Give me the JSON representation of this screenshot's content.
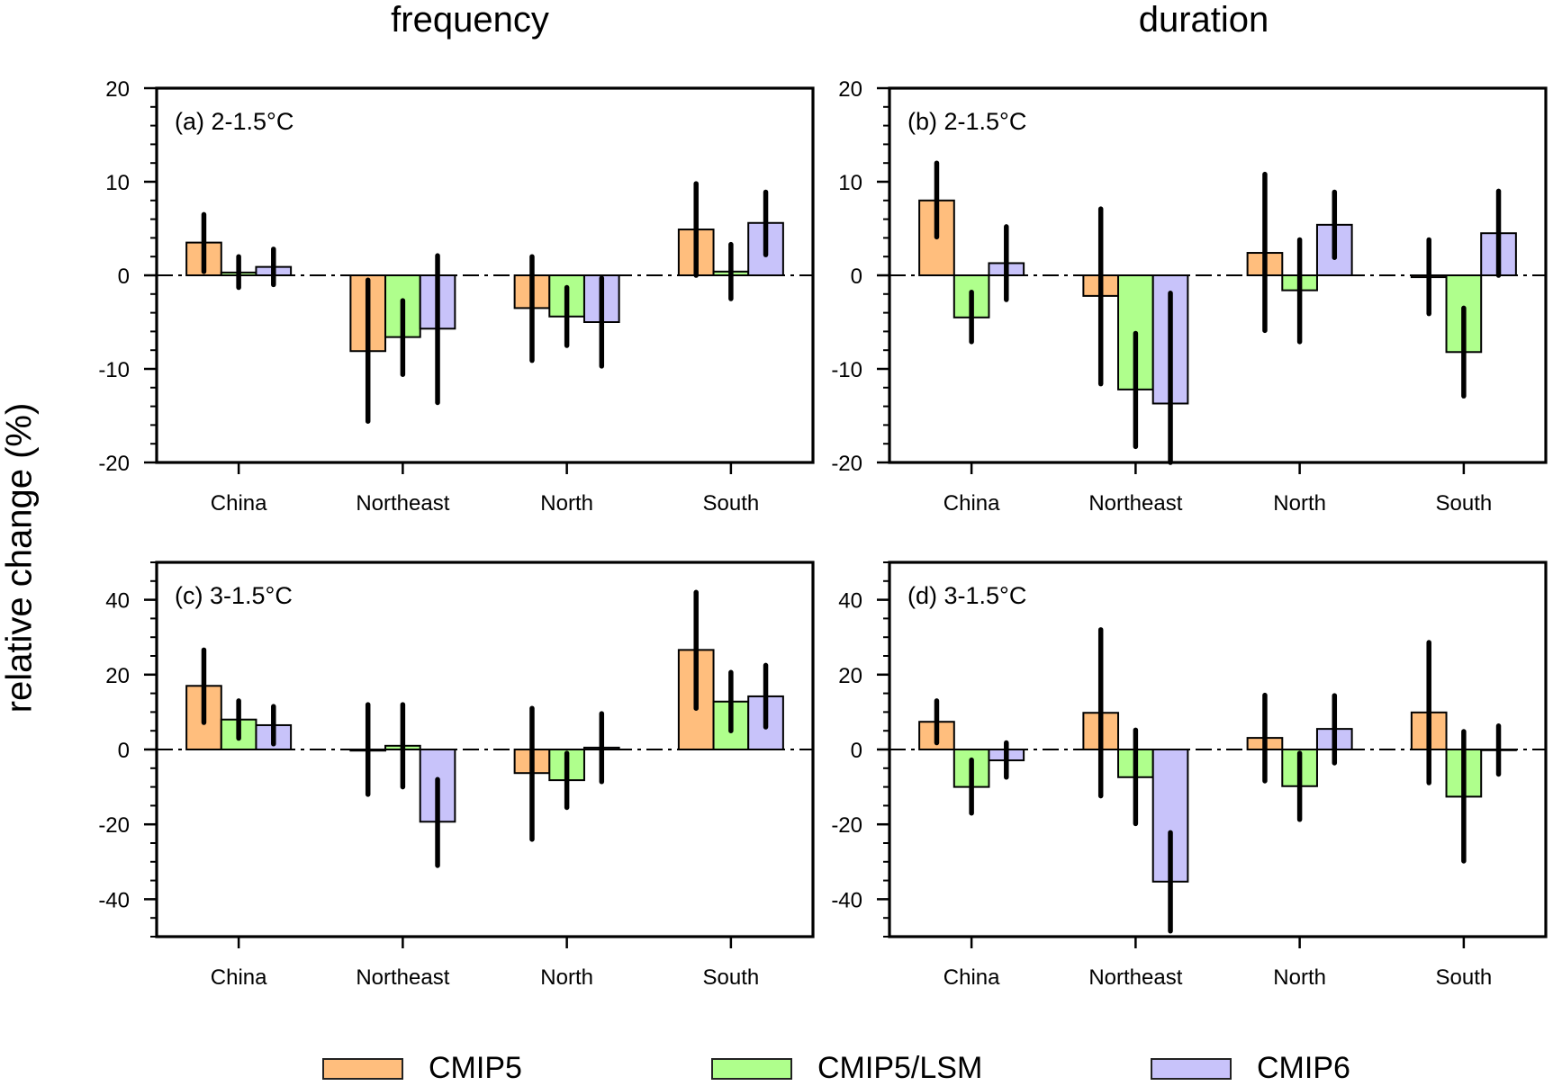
{
  "figure": {
    "column_titles": [
      "frequency",
      "duration"
    ],
    "ylabel": "relative change (%)",
    "legend": [
      {
        "name": "CMIP5",
        "color": "#FFBE7D"
      },
      {
        "name": "CMIP5/LSM",
        "color": "#AFFF8C"
      },
      {
        "name": "CMIP6",
        "color": "#C8C3FA"
      }
    ]
  },
  "chart_data": [
    {
      "type": "bar",
      "panel": "a",
      "column": "frequency",
      "label": "(a) 2-1.5°C",
      "categories": [
        "China",
        "Northeast",
        "North",
        "South"
      ],
      "ylim": [
        -20,
        20
      ],
      "yticks": [
        -20,
        -10,
        0,
        10,
        20
      ],
      "yminor_step": 2,
      "series": [
        {
          "name": "CMIP5",
          "values": [
            3.5,
            -8.1,
            -3.5,
            4.9
          ],
          "err_low": [
            0.4,
            -15.6,
            -9.1,
            0.0
          ],
          "err_high": [
            6.5,
            -0.5,
            2.0,
            9.8
          ]
        },
        {
          "name": "CMIP5/LSM",
          "values": [
            0.3,
            -6.6,
            -4.4,
            0.4
          ],
          "err_low": [
            -1.3,
            -10.6,
            -7.5,
            -2.5
          ],
          "err_high": [
            2.0,
            -2.7,
            -1.3,
            3.3
          ]
        },
        {
          "name": "CMIP6",
          "values": [
            0.9,
            -5.7,
            -5.0,
            5.6
          ],
          "err_low": [
            -1.0,
            -13.6,
            -9.7,
            2.2
          ],
          "err_high": [
            2.8,
            2.1,
            -0.3,
            8.9
          ]
        }
      ]
    },
    {
      "type": "bar",
      "panel": "b",
      "column": "duration",
      "label": "(b) 2-1.5°C",
      "categories": [
        "China",
        "Northeast",
        "North",
        "South"
      ],
      "ylim": [
        -20,
        20
      ],
      "yticks": [
        -20,
        -10,
        0,
        10,
        20
      ],
      "yminor_step": 2,
      "series": [
        {
          "name": "CMIP5",
          "values": [
            8.0,
            -2.2,
            2.4,
            -0.2
          ],
          "err_low": [
            4.1,
            -11.6,
            -5.9,
            -4.1
          ],
          "err_high": [
            12.0,
            7.1,
            10.8,
            3.8
          ]
        },
        {
          "name": "CMIP5/LSM",
          "values": [
            -4.5,
            -12.2,
            -1.6,
            -8.2
          ],
          "err_low": [
            -7.1,
            -18.3,
            -7.1,
            -12.9
          ],
          "err_high": [
            -1.8,
            -6.2,
            3.8,
            -3.5
          ]
        },
        {
          "name": "CMIP6",
          "values": [
            1.3,
            -13.7,
            5.4,
            4.5
          ],
          "err_low": [
            -2.6,
            -20.0,
            1.9,
            0.0
          ],
          "err_high": [
            5.2,
            -1.9,
            8.9,
            9.0
          ]
        }
      ]
    },
    {
      "type": "bar",
      "panel": "c",
      "column": "frequency",
      "label": "(c) 3-1.5°C",
      "categories": [
        "China",
        "Northeast",
        "North",
        "South"
      ],
      "ylim": [
        -50,
        50
      ],
      "yticks": [
        -40,
        -20,
        0,
        20,
        40
      ],
      "yminor_step": 5,
      "series": [
        {
          "name": "CMIP5",
          "values": [
            17.0,
            -0.3,
            -6.3,
            26.6
          ],
          "err_low": [
            7.2,
            -12.0,
            -24.0,
            11.0
          ],
          "err_high": [
            26.6,
            12.0,
            11.0,
            42.0
          ]
        },
        {
          "name": "CMIP5/LSM",
          "values": [
            8.0,
            1.0,
            -8.2,
            12.8
          ],
          "err_low": [
            3.0,
            -10.0,
            -15.5,
            5.0
          ],
          "err_high": [
            13.0,
            12.0,
            -1.0,
            20.6
          ]
        },
        {
          "name": "CMIP6",
          "values": [
            6.5,
            -19.3,
            0.5,
            14.2
          ],
          "err_low": [
            1.5,
            -31.0,
            -8.6,
            6.0
          ],
          "err_high": [
            11.5,
            -8.0,
            9.6,
            22.5
          ]
        }
      ]
    },
    {
      "type": "bar",
      "panel": "d",
      "column": "duration",
      "label": "(d) 3-1.5°C",
      "categories": [
        "China",
        "Northeast",
        "North",
        "South"
      ],
      "ylim": [
        -50,
        50
      ],
      "yticks": [
        -40,
        -20,
        0,
        20,
        40
      ],
      "yminor_step": 5,
      "series": [
        {
          "name": "CMIP5",
          "values": [
            7.4,
            9.8,
            3.1,
            9.9
          ],
          "err_low": [
            1.8,
            -12.4,
            -8.4,
            -8.9
          ],
          "err_high": [
            13.0,
            32.0,
            14.5,
            28.6
          ]
        },
        {
          "name": "CMIP5/LSM",
          "values": [
            -10.0,
            -7.4,
            -9.8,
            -12.6
          ],
          "err_low": [
            -17.0,
            -19.8,
            -18.7,
            -29.8
          ],
          "err_high": [
            -2.8,
            5.2,
            -1.0,
            4.8
          ]
        },
        {
          "name": "CMIP6",
          "values": [
            -2.9,
            -35.3,
            5.5,
            0.0
          ],
          "err_low": [
            -7.4,
            -48.5,
            -3.6,
            -6.6
          ],
          "err_high": [
            1.8,
            -22.2,
            14.4,
            6.3
          ]
        }
      ]
    }
  ]
}
